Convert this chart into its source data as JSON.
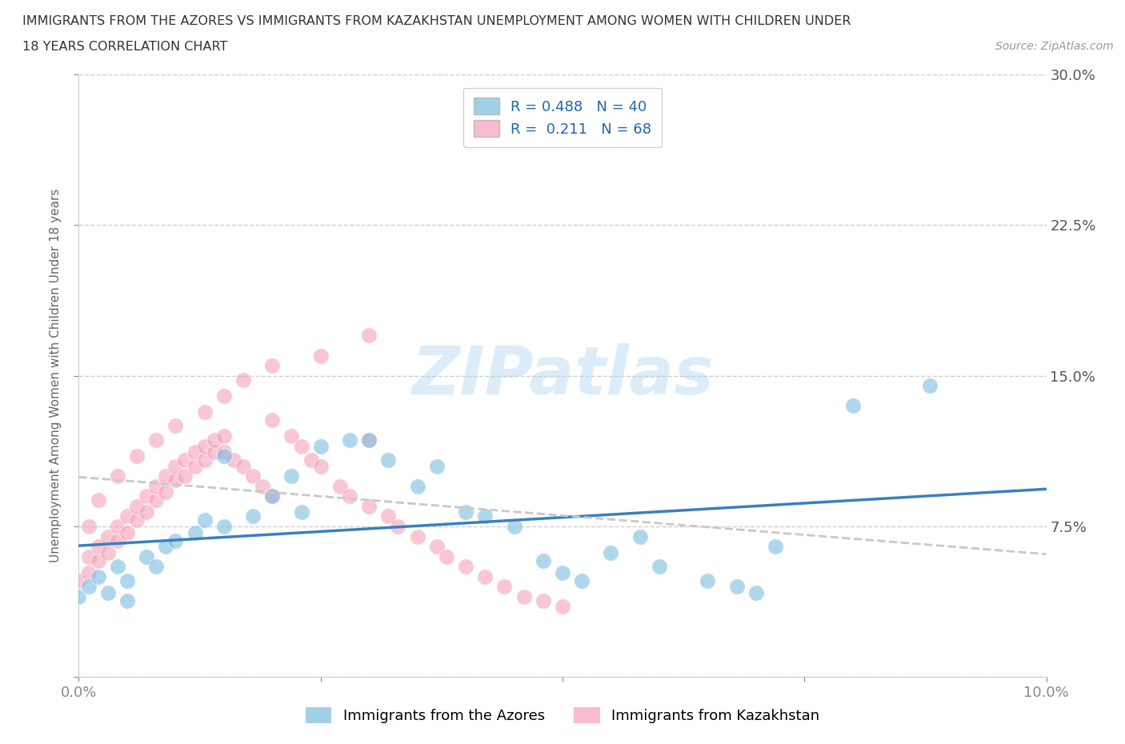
{
  "title_line1": "IMMIGRANTS FROM THE AZORES VS IMMIGRANTS FROM KAZAKHSTAN UNEMPLOYMENT AMONG WOMEN WITH CHILDREN UNDER",
  "title_line2": "18 YEARS CORRELATION CHART",
  "source": "Source: ZipAtlas.com",
  "ylabel": "Unemployment Among Women with Children Under 18 years",
  "xlim": [
    0.0,
    0.1
  ],
  "ylim": [
    0.0,
    0.3
  ],
  "azores_color": "#7bbde0",
  "kazakhstan_color": "#f4a0b8",
  "azores_line_color": "#3a7fc1",
  "kazakhstan_line_color": "#c8c8c8",
  "azores_R": 0.488,
  "azores_N": 40,
  "kazakhstan_R": 0.211,
  "kazakhstan_N": 68,
  "legend_label_azores": "Immigrants from the Azores",
  "legend_label_kazakhstan": "Immigrants from Kazakhstan",
  "watermark": "ZIPatlas",
  "azores_scatter_x": [
    0.0,
    0.001,
    0.002,
    0.003,
    0.004,
    0.005,
    0.005,
    0.007,
    0.008,
    0.009,
    0.01,
    0.012,
    0.013,
    0.015,
    0.015,
    0.018,
    0.02,
    0.022,
    0.023,
    0.025,
    0.028,
    0.03,
    0.032,
    0.035,
    0.037,
    0.04,
    0.042,
    0.045,
    0.048,
    0.05,
    0.052,
    0.055,
    0.058,
    0.06,
    0.065,
    0.068,
    0.07,
    0.072,
    0.08,
    0.088
  ],
  "azores_scatter_y": [
    0.04,
    0.045,
    0.05,
    0.042,
    0.055,
    0.048,
    0.038,
    0.06,
    0.055,
    0.065,
    0.068,
    0.072,
    0.078,
    0.075,
    0.11,
    0.08,
    0.09,
    0.1,
    0.082,
    0.115,
    0.118,
    0.118,
    0.108,
    0.095,
    0.105,
    0.082,
    0.08,
    0.075,
    0.058,
    0.052,
    0.048,
    0.062,
    0.07,
    0.055,
    0.048,
    0.045,
    0.042,
    0.065,
    0.135,
    0.145
  ],
  "kazakhstan_scatter_x": [
    0.0,
    0.001,
    0.001,
    0.002,
    0.002,
    0.003,
    0.003,
    0.004,
    0.004,
    0.005,
    0.005,
    0.006,
    0.006,
    0.007,
    0.007,
    0.008,
    0.008,
    0.009,
    0.009,
    0.01,
    0.01,
    0.011,
    0.011,
    0.012,
    0.012,
    0.013,
    0.013,
    0.014,
    0.014,
    0.015,
    0.015,
    0.016,
    0.017,
    0.018,
    0.019,
    0.02,
    0.02,
    0.022,
    0.023,
    0.024,
    0.025,
    0.027,
    0.028,
    0.03,
    0.03,
    0.032,
    0.033,
    0.035,
    0.037,
    0.038,
    0.04,
    0.042,
    0.044,
    0.046,
    0.048,
    0.05,
    0.03,
    0.025,
    0.02,
    0.017,
    0.015,
    0.013,
    0.01,
    0.008,
    0.006,
    0.004,
    0.002,
    0.001
  ],
  "kazakhstan_scatter_y": [
    0.048,
    0.052,
    0.06,
    0.058,
    0.065,
    0.062,
    0.07,
    0.068,
    0.075,
    0.072,
    0.08,
    0.078,
    0.085,
    0.082,
    0.09,
    0.088,
    0.095,
    0.092,
    0.1,
    0.098,
    0.105,
    0.1,
    0.108,
    0.105,
    0.112,
    0.108,
    0.115,
    0.112,
    0.118,
    0.112,
    0.12,
    0.108,
    0.105,
    0.1,
    0.095,
    0.09,
    0.128,
    0.12,
    0.115,
    0.108,
    0.105,
    0.095,
    0.09,
    0.085,
    0.118,
    0.08,
    0.075,
    0.07,
    0.065,
    0.06,
    0.055,
    0.05,
    0.045,
    0.04,
    0.038,
    0.035,
    0.17,
    0.16,
    0.155,
    0.148,
    0.14,
    0.132,
    0.125,
    0.118,
    0.11,
    0.1,
    0.088,
    0.075
  ],
  "background_color": "#ffffff",
  "grid_color": "#d0d0d0"
}
